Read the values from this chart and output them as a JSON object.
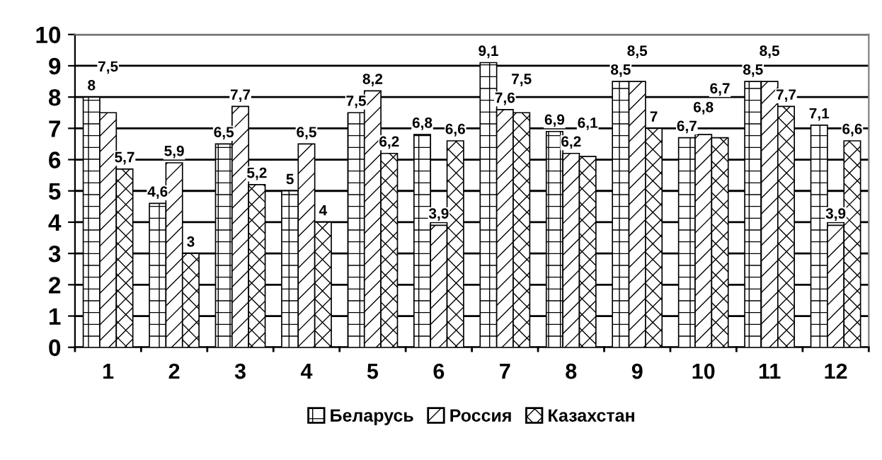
{
  "chart_data": {
    "type": "bar",
    "categories": [
      "1",
      "2",
      "3",
      "4",
      "5",
      "6",
      "7",
      "8",
      "9",
      "10",
      "11",
      "12"
    ],
    "series": [
      {
        "name": "Беларусь",
        "color": "#000000",
        "values": [
          8,
          4.6,
          6.5,
          5,
          7.5,
          6.8,
          9.1,
          6.9,
          8.5,
          6.7,
          8.5,
          7.1
        ],
        "value_labels": [
          "8",
          "4,6",
          "6,5",
          "5",
          "7,5",
          "6,8",
          "9,1",
          "6,9",
          "8,5",
          "6,7",
          "8,5",
          "7,1"
        ]
      },
      {
        "name": "Россия",
        "color": "#000000",
        "values": [
          7.5,
          5.9,
          7.7,
          6.5,
          8.2,
          3.9,
          7.6,
          6.2,
          8.5,
          6.8,
          8.5,
          3.9
        ],
        "value_labels": [
          "7,5",
          "5,9",
          "7,7",
          "6,5",
          "8,2",
          "3,9",
          "7,6",
          "6,2",
          "8,5",
          "6,8",
          "8,5",
          "3,9"
        ]
      },
      {
        "name": "Казахстан",
        "color": "#000000",
        "values": [
          5.7,
          3,
          5.2,
          4,
          6.2,
          6.6,
          7.5,
          6.1,
          7,
          6.7,
          7.7,
          6.6
        ],
        "value_labels": [
          "5,7",
          "3",
          "5,2",
          "4",
          "6,2",
          "6,6",
          "7,5",
          "6,1",
          "7",
          "6,7",
          "7,7",
          "6,6"
        ]
      }
    ],
    "ylim": [
      0,
      10
    ],
    "yticks": [
      0,
      1,
      2,
      3,
      4,
      5,
      6,
      7,
      8,
      9,
      10
    ],
    "grid": "y",
    "legend": "bottom"
  }
}
